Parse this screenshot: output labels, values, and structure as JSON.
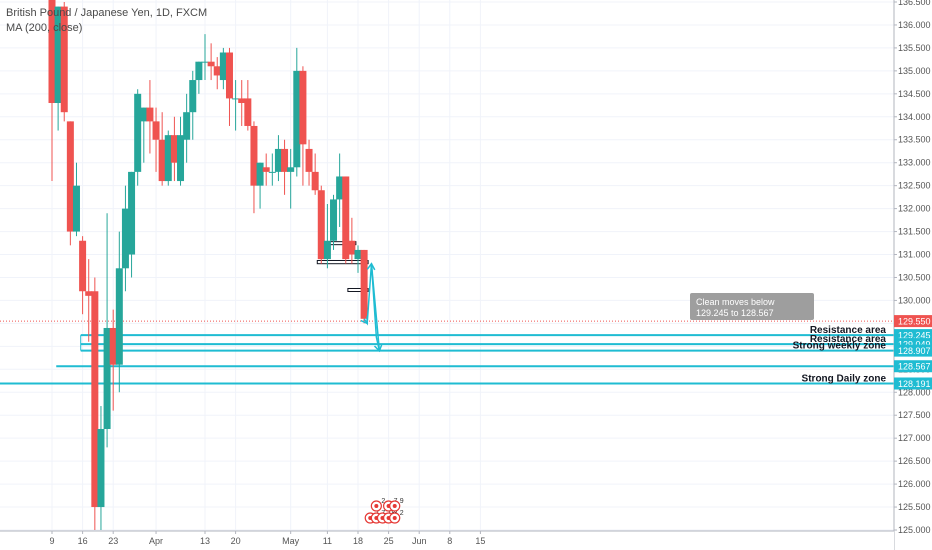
{
  "legend": {
    "symbol": "British Pound / Japanese Yen, 1D, FXCM",
    "indicator": "MA (200, close)"
  },
  "callout": {
    "text": "Clean moves below 129.245 to 128.567"
  },
  "colors": {
    "up": "#26a69a",
    "down": "#ef5350",
    "level_line": "#1fbcd2",
    "price_badge": "#ef5350",
    "level_badge": "#1fbcd2"
  },
  "chart_data": {
    "type": "candlestick",
    "ylim": [
      125.0,
      136.5
    ],
    "y_ticks": [
      125.0,
      125.5,
      126.0,
      126.5,
      127.0,
      127.5,
      128.0,
      128.5,
      129.0,
      129.5,
      130.0,
      130.5,
      131.0,
      131.5,
      132.0,
      132.5,
      133.0,
      133.5,
      134.0,
      134.5,
      135.0,
      135.5,
      136.0,
      136.5
    ],
    "y_tick_labels": [
      "125.000",
      "125.500",
      "126.000",
      "126.500",
      "127.000",
      "127.500",
      "128.000",
      "128.500",
      "129.000",
      "129.500",
      "130.000",
      "130.500",
      "131.000",
      "131.500",
      "132.000",
      "132.500",
      "133.000",
      "133.500",
      "134.000",
      "134.500",
      "135.000",
      "135.500",
      "136.000",
      "136.500"
    ],
    "x_ticks": [
      {
        "label": "9",
        "bar": 0
      },
      {
        "label": "16",
        "bar": 5
      },
      {
        "label": "23",
        "bar": 10
      },
      {
        "label": "Apr",
        "bar": 17
      },
      {
        "label": "13",
        "bar": 25
      },
      {
        "label": "20",
        "bar": 30
      },
      {
        "label": "May",
        "bar": 39
      },
      {
        "label": "11",
        "bar": 45
      },
      {
        "label": "18",
        "bar": 50
      },
      {
        "label": "25",
        "bar": 55
      },
      {
        "label": "Jun",
        "bar": 60
      },
      {
        "label": "8",
        "bar": 65
      },
      {
        "label": "15",
        "bar": 70
      }
    ],
    "candles": [
      {
        "o": 136.7,
        "h": 136.9,
        "l": 132.6,
        "c": 134.3
      },
      {
        "o": 134.3,
        "h": 136.4,
        "l": 133.7,
        "c": 136.4
      },
      {
        "o": 136.4,
        "h": 136.5,
        "l": 133.9,
        "c": 134.1
      },
      {
        "o": 133.9,
        "h": 133.9,
        "l": 131.2,
        "c": 131.5
      },
      {
        "o": 131.5,
        "h": 133.0,
        "l": 131.4,
        "c": 132.5
      },
      {
        "o": 131.3,
        "h": 131.4,
        "l": 129.7,
        "c": 130.2
      },
      {
        "o": 130.2,
        "h": 130.9,
        "l": 129.1,
        "c": 130.1
      },
      {
        "o": 130.2,
        "h": 130.5,
        "l": 125.0,
        "c": 125.5
      },
      {
        "o": 125.5,
        "h": 127.7,
        "l": 125.0,
        "c": 127.2
      },
      {
        "o": 127.2,
        "h": 131.9,
        "l": 126.8,
        "c": 129.4
      },
      {
        "o": 129.4,
        "h": 129.8,
        "l": 127.6,
        "c": 128.6
      },
      {
        "o": 128.6,
        "h": 131.5,
        "l": 128.0,
        "c": 130.7
      },
      {
        "o": 130.7,
        "h": 132.5,
        "l": 130.2,
        "c": 132.0
      },
      {
        "o": 131.0,
        "h": 132.8,
        "l": 130.5,
        "c": 132.8
      },
      {
        "o": 132.8,
        "h": 134.6,
        "l": 132.5,
        "c": 134.5
      },
      {
        "o": 133.9,
        "h": 134.2,
        "l": 133.0,
        "c": 134.2
      },
      {
        "o": 134.2,
        "h": 134.8,
        "l": 133.2,
        "c": 133.9
      },
      {
        "o": 133.9,
        "h": 134.2,
        "l": 132.8,
        "c": 133.5
      },
      {
        "o": 133.5,
        "h": 134.1,
        "l": 132.5,
        "c": 132.6
      },
      {
        "o": 132.6,
        "h": 133.7,
        "l": 132.5,
        "c": 133.6
      },
      {
        "o": 133.6,
        "h": 134.0,
        "l": 132.6,
        "c": 133.0
      },
      {
        "o": 132.6,
        "h": 134.0,
        "l": 132.5,
        "c": 133.6
      },
      {
        "o": 133.5,
        "h": 134.5,
        "l": 133.0,
        "c": 134.1
      },
      {
        "o": 134.1,
        "h": 135.0,
        "l": 133.5,
        "c": 134.8
      },
      {
        "o": 134.8,
        "h": 135.2,
        "l": 134.5,
        "c": 135.2
      },
      {
        "o": 135.2,
        "h": 135.8,
        "l": 134.8,
        "c": 135.2
      },
      {
        "o": 135.2,
        "h": 135.6,
        "l": 134.8,
        "c": 135.1
      },
      {
        "o": 135.1,
        "h": 135.3,
        "l": 134.6,
        "c": 134.9
      },
      {
        "o": 134.8,
        "h": 135.5,
        "l": 134.6,
        "c": 135.4
      },
      {
        "o": 135.4,
        "h": 135.5,
        "l": 133.8,
        "c": 134.4
      },
      {
        "o": 134.4,
        "h": 134.8,
        "l": 133.7,
        "c": 134.4
      },
      {
        "o": 134.4,
        "h": 134.8,
        "l": 133.8,
        "c": 134.3
      },
      {
        "o": 134.4,
        "h": 134.8,
        "l": 133.7,
        "c": 133.8
      },
      {
        "o": 133.8,
        "h": 133.9,
        "l": 131.9,
        "c": 132.5
      },
      {
        "o": 132.5,
        "h": 133.0,
        "l": 132.0,
        "c": 133.0
      },
      {
        "o": 132.9,
        "h": 133.2,
        "l": 132.5,
        "c": 132.8
      },
      {
        "o": 132.8,
        "h": 133.2,
        "l": 132.5,
        "c": 132.8
      },
      {
        "o": 132.8,
        "h": 133.6,
        "l": 132.6,
        "c": 133.3
      },
      {
        "o": 133.3,
        "h": 133.5,
        "l": 132.3,
        "c": 132.8
      },
      {
        "o": 132.8,
        "h": 133.3,
        "l": 132.0,
        "c": 132.9
      },
      {
        "o": 132.9,
        "h": 135.5,
        "l": 132.7,
        "c": 135.0
      },
      {
        "o": 135.0,
        "h": 135.1,
        "l": 132.5,
        "c": 133.4
      },
      {
        "o": 133.3,
        "h": 133.5,
        "l": 132.5,
        "c": 132.8
      },
      {
        "o": 132.8,
        "h": 133.2,
        "l": 132.3,
        "c": 132.4
      },
      {
        "o": 132.4,
        "h": 132.5,
        "l": 130.8,
        "c": 130.9
      },
      {
        "o": 130.9,
        "h": 132.1,
        "l": 130.7,
        "c": 131.3
      },
      {
        "o": 131.3,
        "h": 132.3,
        "l": 131.1,
        "c": 132.2
      },
      {
        "o": 132.2,
        "h": 133.2,
        "l": 131.6,
        "c": 132.7
      },
      {
        "o": 132.7,
        "h": 132.7,
        "l": 130.8,
        "c": 130.9
      },
      {
        "o": 131.3,
        "h": 131.8,
        "l": 130.8,
        "c": 131.0
      },
      {
        "o": 130.9,
        "h": 131.2,
        "l": 130.6,
        "c": 131.1
      },
      {
        "o": 131.1,
        "h": 131.1,
        "l": 129.5,
        "c": 129.6
      }
    ],
    "current_price": {
      "value": 129.55,
      "label": "129.550"
    },
    "levels": [
      {
        "value": 129.245,
        "label": "129.245",
        "text": "Resistance area",
        "start_bar": 6
      },
      {
        "value": 129.049,
        "label": "129.049",
        "text": "Resistance area",
        "start_bar": 6
      },
      {
        "value": 128.907,
        "label": "128.907",
        "text": "Strong weekly zone",
        "start_bar": 6
      },
      {
        "value": 128.567,
        "label": "128.567",
        "text": "",
        "start_bar": 2
      },
      {
        "value": 128.191,
        "label": "128.191",
        "text": "Strong Daily zone",
        "start_bar": -2
      }
    ],
    "boxes": [
      {
        "start_bar": 45,
        "end_bar": 49,
        "top": 131.28,
        "bottom": 131.22
      },
      {
        "start_bar": 44,
        "end_bar": 51,
        "top": 130.87,
        "bottom": 130.8
      },
      {
        "start_bar": 49,
        "end_bar": 51,
        "top": 130.26,
        "bottom": 130.2
      }
    ],
    "projection_path": [
      {
        "bar": 51.0,
        "price": 129.6
      },
      {
        "bar": 51.5,
        "price": 129.5
      },
      {
        "bar": 52.2,
        "price": 130.8
      },
      {
        "bar": 53.0,
        "price": 129.2
      },
      {
        "bar": 53.5,
        "price": 128.9
      }
    ],
    "projection_path2": [
      {
        "bar": 52.2,
        "price": 130.8
      },
      {
        "bar": 53.5,
        "price": 128.9
      }
    ],
    "event_markers": [
      {
        "bar": 52,
        "row": 1,
        "label": "7"
      },
      {
        "bar": 53,
        "row": 1,
        "label": "7"
      },
      {
        "bar": 54,
        "row": 1,
        "label": "18"
      },
      {
        "bar": 55,
        "row": 1,
        "label": "3"
      },
      {
        "bar": 56,
        "row": 1,
        "label": "2"
      },
      {
        "bar": 53,
        "row": 0,
        "label": "2"
      },
      {
        "bar": 55,
        "row": 0,
        "label": "7"
      },
      {
        "bar": 56,
        "row": 0,
        "label": "9"
      }
    ]
  }
}
